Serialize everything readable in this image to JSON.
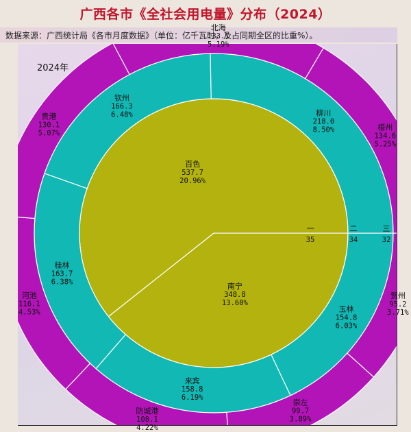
{
  "title": "广西各市《全社会用电量》分布（2024）",
  "subtitle": "数据来源：广西统计局《各市月度数据》（单位：亿千瓦时，及占同期全区的比重%）。",
  "year_label": "2024年",
  "colors": {
    "inner": "#b3b20e",
    "middle": "#12b8b4",
    "outer": "#b214b8",
    "title": "#c0162c"
  },
  "chart_data": {
    "type": "pie",
    "style": "nested-donut",
    "unit": "亿千瓦时",
    "rings": [
      {
        "label": "一",
        "count": "35",
        "items": [
          {
            "name": "南宁",
            "value": "348.8",
            "pct": "13.60%"
          },
          {
            "name": "百色",
            "value": "537.7",
            "pct": "20.96%"
          }
        ]
      },
      {
        "label": "二",
        "count": "34",
        "items": [
          {
            "name": "玉林",
            "value": "154.8",
            "pct": "6.03%"
          },
          {
            "name": "来宾",
            "value": "158.8",
            "pct": "6.19%"
          },
          {
            "name": "桂林",
            "value": "163.7",
            "pct": "6.38%"
          },
          {
            "name": "钦州",
            "value": "166.3",
            "pct": "6.48%"
          },
          {
            "name": "柳川",
            "value": "218.0",
            "pct": "8.50%"
          }
        ]
      },
      {
        "label": "三",
        "count": "32",
        "items": [
          {
            "name": "贺州",
            "value": "95.2",
            "pct": "3.71%"
          },
          {
            "name": "崇左",
            "value": "99.7",
            "pct": "3.89%"
          },
          {
            "name": "防城港",
            "value": "108.1",
            "pct": "4.22%"
          },
          {
            "name": "河池",
            "value": "116.1",
            "pct": "4.53%"
          },
          {
            "name": "贵港",
            "value": "130.1",
            "pct": "5.07%"
          },
          {
            "name": "北海",
            "value": "133.1",
            "pct": "5.19%"
          },
          {
            "name": "梧州",
            "value": "134.6",
            "pct": "5.25%"
          }
        ]
      }
    ]
  }
}
